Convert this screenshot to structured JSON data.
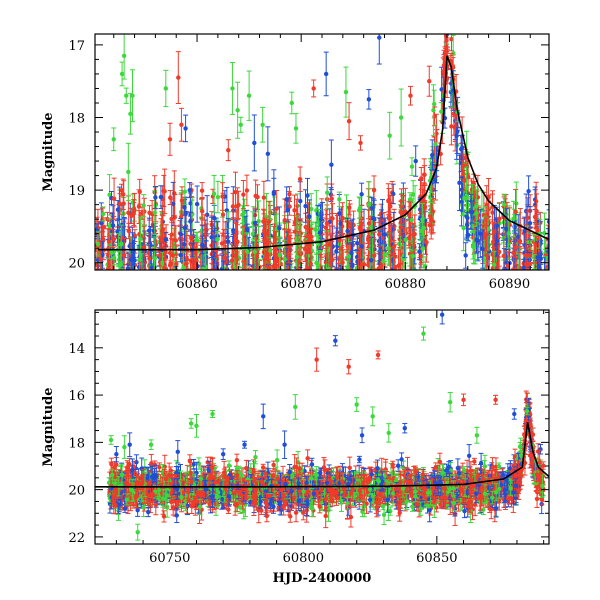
{
  "colors": {
    "blue": "#1f4fd6",
    "green": "#3cd83c",
    "red": "#f03a2a",
    "model": "#000000"
  },
  "chart_data": [
    {
      "type": "scatter",
      "xlabel": "",
      "ylabel": "Magnitude",
      "xlim": [
        60850.2,
        60893.8
      ],
      "ylim": [
        20.1,
        16.85
      ],
      "y_inverted": true,
      "xticks": [
        60860,
        60870,
        60880,
        60890
      ],
      "yticks": [
        17,
        18,
        19,
        20
      ],
      "grid": false,
      "series": [
        {
          "color": "blue",
          "error_bars": true
        },
        {
          "color": "green",
          "error_bars": true
        },
        {
          "color": "red",
          "error_bars": true
        },
        {
          "color": "model",
          "kind": "line",
          "points": [
            [
              60850.5,
              19.82
            ],
            [
              60860,
              19.82
            ],
            [
              60866,
              19.79
            ],
            [
              60872,
              19.71
            ],
            [
              60877,
              19.55
            ],
            [
              60880,
              19.34
            ],
            [
              60882,
              19.05
            ],
            [
              60883,
              18.7
            ],
            [
              60883.6,
              18.15
            ],
            [
              60884,
              17.15
            ],
            [
              60884.4,
              17.3
            ],
            [
              60885,
              17.9
            ],
            [
              60886,
              18.55
            ],
            [
              60887,
              18.92
            ],
            [
              60888,
              19.15
            ],
            [
              60890,
              19.42
            ],
            [
              60893.8,
              19.68
            ]
          ]
        }
      ],
      "trend": {
        "baseline_mag": 19.9,
        "peak_time": 60884.1,
        "peak_mag": 17.1,
        "outliers": [
          [
            60852,
            18.3,
            "green"
          ],
          [
            60852.8,
            17.4,
            "green"
          ],
          [
            60853,
            17.15,
            "green"
          ],
          [
            60853.2,
            17.7,
            "green"
          ],
          [
            60853.4,
            18.75,
            "green"
          ],
          [
            60853.6,
            17.95,
            "green"
          ],
          [
            60853.8,
            17.7,
            "green"
          ],
          [
            60856,
            19.1,
            "blue"
          ],
          [
            60857,
            17.6,
            "green"
          ],
          [
            60857.4,
            18.3,
            "red"
          ],
          [
            60858.2,
            17.45,
            "red"
          ],
          [
            60858.5,
            18.1,
            "red"
          ],
          [
            60858.9,
            18.15,
            "blue"
          ],
          [
            60859.3,
            19.0,
            "blue"
          ],
          [
            60863,
            18.45,
            "red"
          ],
          [
            60863.4,
            17.6,
            "green"
          ],
          [
            60863.9,
            17.9,
            "green"
          ],
          [
            60864.2,
            18.1,
            "green"
          ],
          [
            60865,
            17.7,
            "green"
          ],
          [
            60865.5,
            18.35,
            "blue"
          ],
          [
            60866.3,
            18.1,
            "green"
          ],
          [
            60866.8,
            18.5,
            "blue"
          ],
          [
            60869.1,
            17.8,
            "green"
          ],
          [
            60869.5,
            18.15,
            "green"
          ],
          [
            60869.9,
            18.85,
            "red"
          ],
          [
            60871.2,
            17.6,
            "red"
          ],
          [
            60872.4,
            17.4,
            "blue"
          ],
          [
            60872.9,
            18.65,
            "blue"
          ],
          [
            60874.3,
            17.65,
            "green"
          ],
          [
            60874.6,
            18.05,
            "red"
          ],
          [
            60875.7,
            18.35,
            "red"
          ],
          [
            60876.5,
            17.75,
            "blue"
          ],
          [
            60877.5,
            16.9,
            "blue"
          ],
          [
            60878.5,
            18.25,
            "green"
          ],
          [
            60879.6,
            18.0,
            "green"
          ],
          [
            60880.5,
            17.7,
            "red"
          ],
          [
            60881,
            18.6,
            "blue"
          ],
          [
            60882.3,
            17.5,
            "red"
          ],
          [
            60882.7,
            17.9,
            "green"
          ],
          [
            60885.2,
            18.9,
            "blue"
          ],
          [
            60885.8,
            19.9,
            "blue"
          ],
          [
            60886.3,
            19.3,
            "blue"
          ],
          [
            60887.2,
            19.6,
            "blue"
          ],
          [
            60888,
            19.1,
            "red"
          ],
          [
            60888.8,
            19.7,
            "blue"
          ],
          [
            60889.5,
            19.2,
            "green"
          ]
        ]
      }
    },
    {
      "type": "scatter",
      "xlabel": "HJD-2400000",
      "ylabel": "Magnitude",
      "xlim": [
        60722,
        60892
      ],
      "ylim": [
        22.3,
        12.4
      ],
      "y_inverted": true,
      "xticks": [
        60750,
        60800,
        60850
      ],
      "yticks": [
        14,
        16,
        18,
        20,
        22
      ],
      "grid": false,
      "series": [
        {
          "color": "blue",
          "error_bars": true
        },
        {
          "color": "green",
          "error_bars": true
        },
        {
          "color": "red",
          "error_bars": true
        },
        {
          "color": "model",
          "kind": "line",
          "points": [
            [
              60722,
              19.88
            ],
            [
              60780,
              19.88
            ],
            [
              60830,
              19.86
            ],
            [
              60860,
              19.78
            ],
            [
              60875,
              19.55
            ],
            [
              60882,
              19.05
            ],
            [
              60884,
              17.15
            ],
            [
              60886,
              18.4
            ],
            [
              60888,
              19.05
            ],
            [
              60892,
              19.45
            ]
          ]
        }
      ],
      "trend": {
        "baseline_mag": 19.95,
        "peak_time": 60884.1,
        "peak_mag": 16.6,
        "outliers": [
          [
            60728,
            17.9,
            "green"
          ],
          [
            60730,
            18.5,
            "blue"
          ],
          [
            60733,
            18.2,
            "green"
          ],
          [
            60735,
            18.1,
            "blue"
          ],
          [
            60738,
            21.8,
            "green"
          ],
          [
            60743,
            18.1,
            "green"
          ],
          [
            60753,
            18.4,
            "blue"
          ],
          [
            60758,
            17.2,
            "green"
          ],
          [
            60760,
            17.3,
            "green"
          ],
          [
            60766,
            16.8,
            "green"
          ],
          [
            60770,
            18.5,
            "blue"
          ],
          [
            60778,
            18.1,
            "blue"
          ],
          [
            60785,
            16.9,
            "blue"
          ],
          [
            60793,
            18.1,
            "blue"
          ],
          [
            60797,
            16.5,
            "green"
          ],
          [
            60805,
            14.5,
            "red"
          ],
          [
            60812,
            13.7,
            "blue"
          ],
          [
            60817,
            14.8,
            "red"
          ],
          [
            60820,
            16.4,
            "green"
          ],
          [
            60822,
            17.7,
            "blue"
          ],
          [
            60826,
            16.9,
            "green"
          ],
          [
            60828,
            14.3,
            "red"
          ],
          [
            60832,
            17.6,
            "green"
          ],
          [
            60838,
            17.4,
            "blue"
          ],
          [
            60845,
            13.4,
            "green"
          ],
          [
            60852,
            12.6,
            "blue"
          ],
          [
            60855,
            16.3,
            "green"
          ],
          [
            60860,
            16.2,
            "red"
          ],
          [
            60865,
            17.7,
            "green"
          ],
          [
            60872,
            16.2,
            "red"
          ],
          [
            60879,
            16.8,
            "blue"
          ]
        ]
      }
    }
  ]
}
